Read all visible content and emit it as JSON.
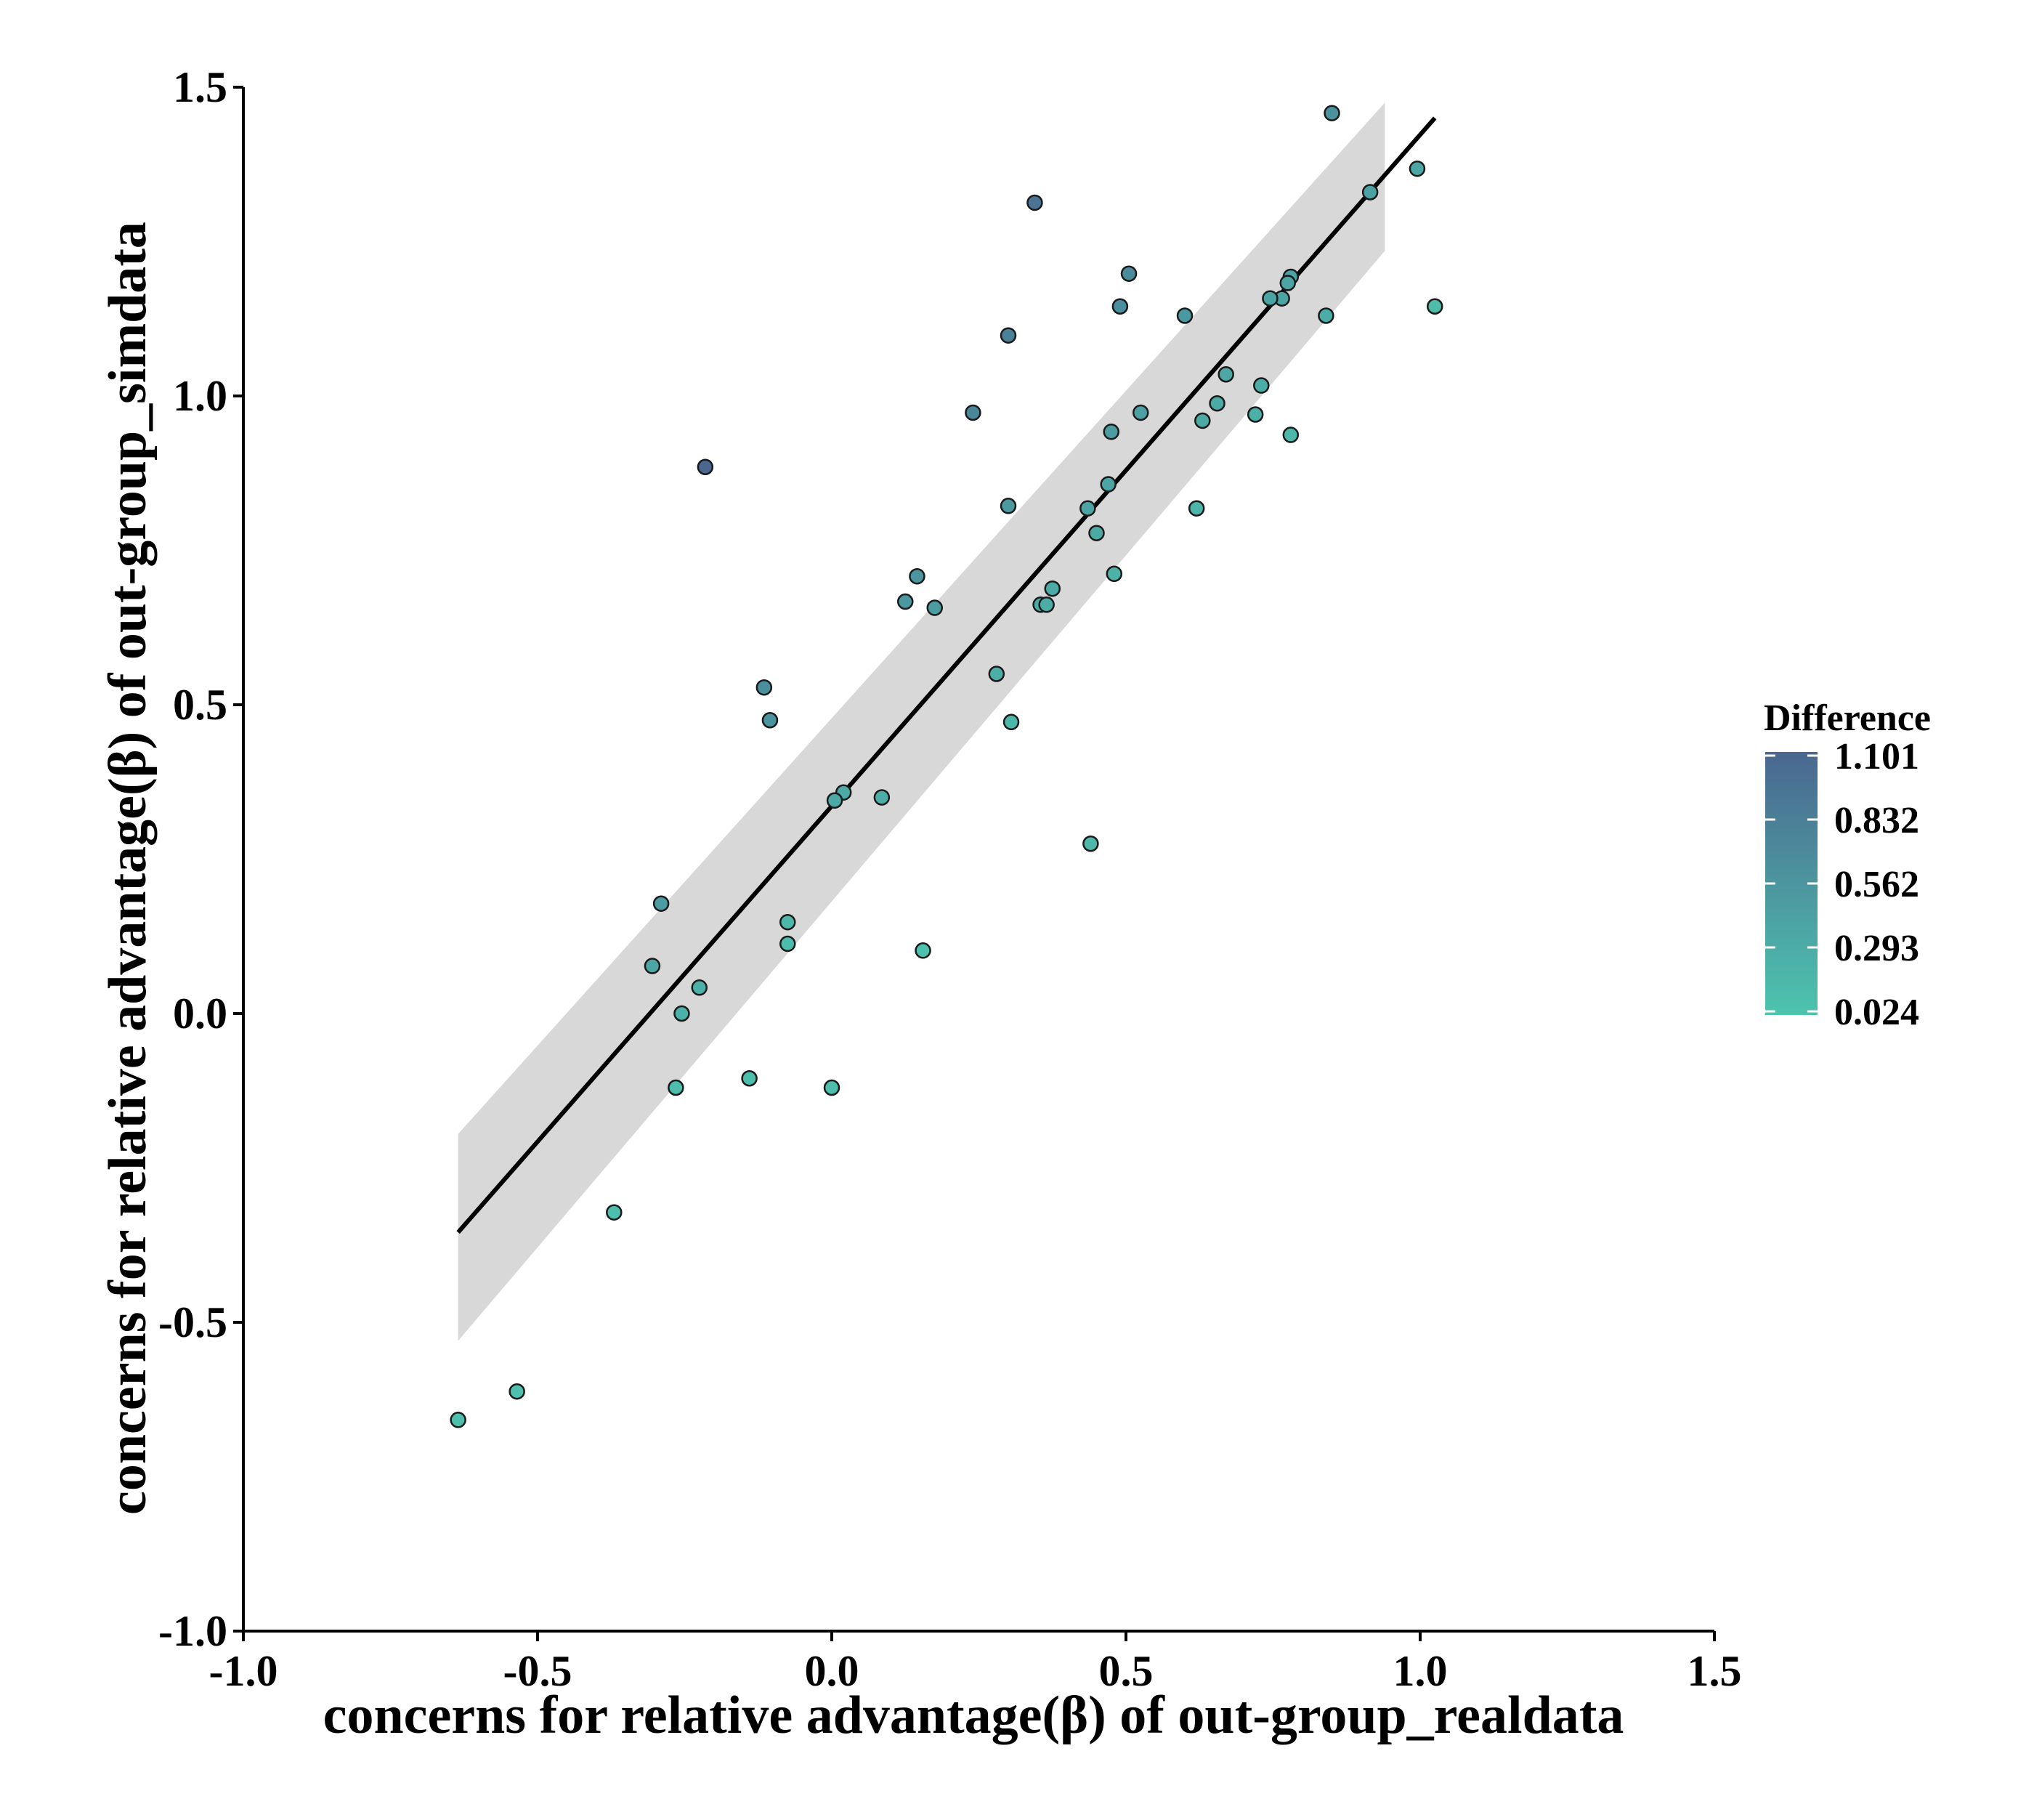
{
  "chart_data": {
    "type": "scatter",
    "title": "",
    "xlabel": "concerns for relative advantage(β) of out-group_realdata",
    "ylabel": "concerns for relative advantage(β) of out-group_simdata",
    "xlim": [
      -1.0,
      1.5
    ],
    "ylim": [
      -1.0,
      1.5
    ],
    "x_ticks": [
      "-1.0",
      "-0.5",
      "0.0",
      "0.5",
      "1.0",
      "1.5"
    ],
    "y_ticks": [
      "-1.0",
      "-0.5",
      "0.0",
      "0.5",
      "1.0",
      "1.5"
    ],
    "grid": false,
    "legend": {
      "title": "Difference",
      "position": "right",
      "type": "colorbar",
      "range": [
        0.024,
        1.101
      ],
      "labels": [
        "1.101",
        "0.832",
        "0.562",
        "0.293",
        "0.024"
      ],
      "color_low": "#4dc4ae",
      "color_high": "#4a6790"
    },
    "regression": {
      "x_range": [
        -0.635,
        1.025
      ],
      "intercept": 0.336,
      "slope": 1.087,
      "ci_band": [
        {
          "x": -0.635,
          "lower": -0.53,
          "upper": -0.195
        },
        {
          "x": 0.94,
          "lower": 1.235,
          "upper": 1.475
        }
      ],
      "line_color": "#000000",
      "band_color": "#d8d8d8"
    },
    "points": [
      {
        "x": 0.85,
        "y": 1.458,
        "d": 0.6
      },
      {
        "x": 0.995,
        "y": 1.368,
        "d": 0.37
      },
      {
        "x": 0.915,
        "y": 1.33,
        "d": 0.42
      },
      {
        "x": 0.345,
        "y": 1.313,
        "d": 0.96
      },
      {
        "x": 0.505,
        "y": 1.198,
        "d": 0.69
      },
      {
        "x": 0.78,
        "y": 1.193,
        "d": 0.41
      },
      {
        "x": 0.775,
        "y": 1.183,
        "d": 0.4
      },
      {
        "x": 0.765,
        "y": 1.158,
        "d": 0.39
      },
      {
        "x": 0.745,
        "y": 1.158,
        "d": 0.41
      },
      {
        "x": 0.49,
        "y": 1.145,
        "d": 0.65
      },
      {
        "x": 1.025,
        "y": 1.145,
        "d": 0.12
      },
      {
        "x": 0.6,
        "y": 1.13,
        "d": 0.53
      },
      {
        "x": 0.84,
        "y": 1.13,
        "d": 0.29
      },
      {
        "x": 0.3,
        "y": 1.098,
        "d": 0.8
      },
      {
        "x": 0.67,
        "y": 1.035,
        "d": 0.36
      },
      {
        "x": 0.73,
        "y": 1.017,
        "d": 0.29
      },
      {
        "x": 0.655,
        "y": 0.988,
        "d": 0.33
      },
      {
        "x": 0.24,
        "y": 0.973,
        "d": 0.73
      },
      {
        "x": 0.525,
        "y": 0.973,
        "d": 0.45
      },
      {
        "x": 0.72,
        "y": 0.97,
        "d": 0.25
      },
      {
        "x": 0.63,
        "y": 0.96,
        "d": 0.33
      },
      {
        "x": 0.475,
        "y": 0.942,
        "d": 0.47
      },
      {
        "x": 0.78,
        "y": 0.937,
        "d": 0.16
      },
      {
        "x": -0.215,
        "y": 0.885,
        "d": 1.101
      },
      {
        "x": 0.47,
        "y": 0.857,
        "d": 0.39
      },
      {
        "x": 0.3,
        "y": 0.822,
        "d": 0.52
      },
      {
        "x": 0.435,
        "y": 0.818,
        "d": 0.38
      },
      {
        "x": 0.62,
        "y": 0.818,
        "d": 0.2
      },
      {
        "x": 0.45,
        "y": 0.778,
        "d": 0.33
      },
      {
        "x": 0.145,
        "y": 0.708,
        "d": 0.56
      },
      {
        "x": 0.48,
        "y": 0.712,
        "d": 0.23
      },
      {
        "x": 0.125,
        "y": 0.667,
        "d": 0.54
      },
      {
        "x": 0.375,
        "y": 0.688,
        "d": 0.31
      },
      {
        "x": 0.355,
        "y": 0.662,
        "d": 0.31
      },
      {
        "x": 0.365,
        "y": 0.662,
        "d": 0.3
      },
      {
        "x": 0.175,
        "y": 0.657,
        "d": 0.48
      },
      {
        "x": 0.28,
        "y": 0.55,
        "d": 0.27
      },
      {
        "x": -0.115,
        "y": 0.528,
        "d": 0.64
      },
      {
        "x": -0.105,
        "y": 0.475,
        "d": 0.58
      },
      {
        "x": 0.305,
        "y": 0.472,
        "d": 0.17
      },
      {
        "x": 0.02,
        "y": 0.358,
        "d": 0.34
      },
      {
        "x": 0.005,
        "y": 0.345,
        "d": 0.34
      },
      {
        "x": 0.085,
        "y": 0.35,
        "d": 0.27
      },
      {
        "x": 0.44,
        "y": 0.275,
        "d": 0.17
      },
      {
        "x": -0.29,
        "y": 0.178,
        "d": 0.47
      },
      {
        "x": -0.075,
        "y": 0.148,
        "d": 0.16
      },
      {
        "x": -0.075,
        "y": 0.113,
        "d": 0.12
      },
      {
        "x": 0.155,
        "y": 0.102,
        "d": 0.06
      },
      {
        "x": -0.305,
        "y": 0.077,
        "d": 0.37
      },
      {
        "x": -0.225,
        "y": 0.042,
        "d": 0.25
      },
      {
        "x": -0.255,
        "y": 0.0,
        "d": 0.24
      },
      {
        "x": -0.14,
        "y": -0.105,
        "d": 0.11
      },
      {
        "x": -0.265,
        "y": -0.12,
        "d": 0.09
      },
      {
        "x": 0.0,
        "y": -0.12,
        "d": 0.1
      },
      {
        "x": -0.37,
        "y": -0.322,
        "d": 0.08
      },
      {
        "x": -0.535,
        "y": -0.612,
        "d": 0.06
      },
      {
        "x": -0.635,
        "y": -0.658,
        "d": 0.08
      }
    ]
  }
}
